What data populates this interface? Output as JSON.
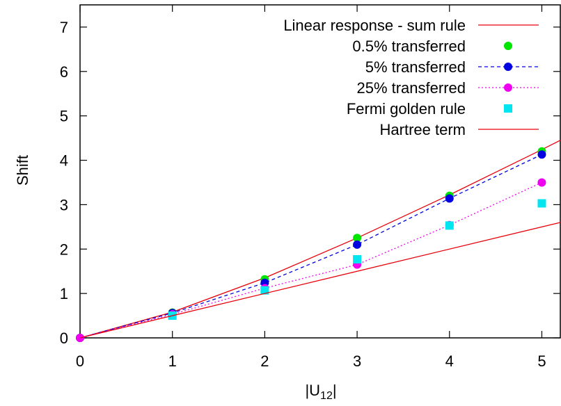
{
  "chart_data": {
    "type": "scatter",
    "xlabel": "|U",
    "xlabel_sub": "12",
    "xlabel_end": "|",
    "ylabel": "Shift",
    "xlim": [
      0,
      5.2
    ],
    "ylim": [
      0,
      7.5
    ],
    "xticks": [
      0,
      1,
      2,
      3,
      4,
      5
    ],
    "yticks": [
      0,
      1,
      2,
      3,
      4,
      5,
      6,
      7
    ],
    "grid": false,
    "legend_position": "top-right",
    "series": [
      {
        "name": "Linear response - sum rule",
        "style": "line",
        "color": "#e8000b",
        "dash": "",
        "x": [
          0,
          1,
          2,
          3,
          4,
          5,
          5.2
        ],
        "y": [
          0,
          0.58,
          1.35,
          2.25,
          3.22,
          4.24,
          4.45
        ]
      },
      {
        "name": "0.5% transferred",
        "style": "point",
        "marker": "circle",
        "color": "#00e600",
        "x": [
          0,
          1,
          2,
          3,
          4,
          5
        ],
        "y": [
          0,
          0.57,
          1.32,
          2.25,
          3.2,
          4.2
        ]
      },
      {
        "name": "5% transferred",
        "style": "linepoint",
        "marker": "circle",
        "color": "#0000e0",
        "dash": "5,4",
        "x": [
          0,
          1,
          2,
          3,
          4,
          5
        ],
        "y": [
          0,
          0.56,
          1.24,
          2.1,
          3.14,
          4.13
        ]
      },
      {
        "name": "25% transferred",
        "style": "linepoint",
        "marker": "circle",
        "color": "#f000f0",
        "dash": "2,3",
        "x": [
          0,
          1,
          2,
          3,
          4,
          5
        ],
        "y": [
          0,
          0.53,
          1.12,
          1.65,
          2.54,
          3.5
        ]
      },
      {
        "name": "Fermi golden rule",
        "style": "point",
        "marker": "square",
        "color": "#00e5ee",
        "x": [
          1,
          2,
          3,
          4,
          5
        ],
        "y": [
          0.5,
          1.07,
          1.77,
          2.53,
          3.03
        ]
      },
      {
        "name": "Hartree term",
        "style": "line",
        "color": "#e8000b",
        "dash": "",
        "x": [
          0,
          5.2
        ],
        "y": [
          0,
          2.6
        ]
      }
    ]
  }
}
